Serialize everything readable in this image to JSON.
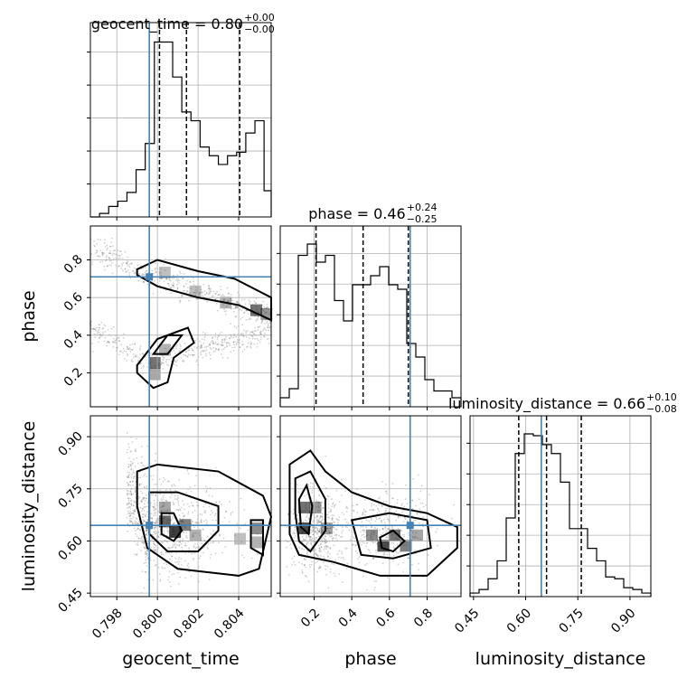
{
  "chart_data": {
    "type": "corner",
    "parameters": [
      "geocent_time",
      "phase",
      "luminosity_distance"
    ],
    "truths": {
      "geocent_time": 0.7996,
      "phase": 0.71,
      "luminosity_distance": 0.645
    },
    "ranges": {
      "geocent_time": [
        0.7967,
        0.8056
      ],
      "phase": [
        0.02,
        0.98
      ],
      "luminosity_distance": [
        0.44,
        0.96
      ]
    },
    "ticks": {
      "geocent_time": {
        "values": [
          0.798,
          0.8,
          0.802,
          0.804
        ],
        "labels": [
          "0.798",
          "0.800",
          "0.802",
          "0.804"
        ]
      },
      "phase": {
        "values": [
          0.2,
          0.4,
          0.6,
          0.8
        ],
        "labels": [
          "0.2",
          "0.4",
          "0.6",
          "0.8"
        ]
      },
      "luminosity_distance": {
        "values": [
          0.45,
          0.6,
          0.75,
          0.9
        ],
        "labels": [
          "0.45",
          "0.60",
          "0.75",
          "0.90"
        ]
      }
    },
    "titles": [
      {
        "param": "geocent_time",
        "label": "geocent_time = 0.80",
        "plus": "+0.00",
        "minus": "−0.00"
      },
      {
        "param": "phase",
        "label": "phase = 0.46",
        "plus": "+0.24",
        "minus": "−0.25"
      },
      {
        "param": "luminosity_distance",
        "label": "luminosity_distance = 0.66",
        "plus": "+0.10",
        "minus": "−0.08"
      }
    ],
    "quantiles": {
      "geocent_time": [
        0.8001,
        0.80143,
        0.80405
      ],
      "phase": [
        0.21,
        0.46,
        0.7
      ],
      "luminosity_distance": [
        0.58,
        0.66,
        0.76
      ]
    },
    "histograms": {
      "geocent_time": {
        "edges": [
          0.7967,
          0.79715,
          0.7976,
          0.79805,
          0.7985,
          0.79895,
          0.7994,
          0.79985,
          0.8003,
          0.80075,
          0.8012,
          0.80165,
          0.8021,
          0.80255,
          0.803,
          0.80345,
          0.8039,
          0.80435,
          0.8048,
          0.80525,
          0.8056
        ],
        "counts": [
          0,
          2,
          6,
          9,
          14,
          27,
          42,
          100,
          100,
          80,
          60,
          55,
          40,
          35,
          30,
          35,
          37,
          48,
          55,
          15
        ]
      },
      "phase": {
        "edges": [
          0.02,
          0.068,
          0.116,
          0.164,
          0.212,
          0.26,
          0.308,
          0.356,
          0.404,
          0.452,
          0.5,
          0.548,
          0.596,
          0.644,
          0.692,
          0.74,
          0.788,
          0.836,
          0.884,
          0.932,
          0.98
        ],
        "counts": [
          4,
          8,
          67,
          72,
          64,
          67,
          47,
          38,
          54,
          54,
          58,
          62,
          54,
          52,
          28,
          22,
          12,
          7,
          7,
          4
        ]
      },
      "luminosity_distance": {
        "edges": [
          0.44,
          0.466,
          0.492,
          0.518,
          0.544,
          0.57,
          0.596,
          0.622,
          0.648,
          0.674,
          0.7,
          0.726,
          0.752,
          0.778,
          0.804,
          0.83,
          0.856,
          0.882,
          0.908,
          0.934,
          0.96
        ],
        "counts": [
          2,
          4,
          10,
          20,
          44,
          80,
          91,
          90,
          85,
          80,
          64,
          38,
          38,
          27,
          20,
          11,
          10,
          5,
          4,
          2
        ]
      }
    },
    "grid": true
  }
}
